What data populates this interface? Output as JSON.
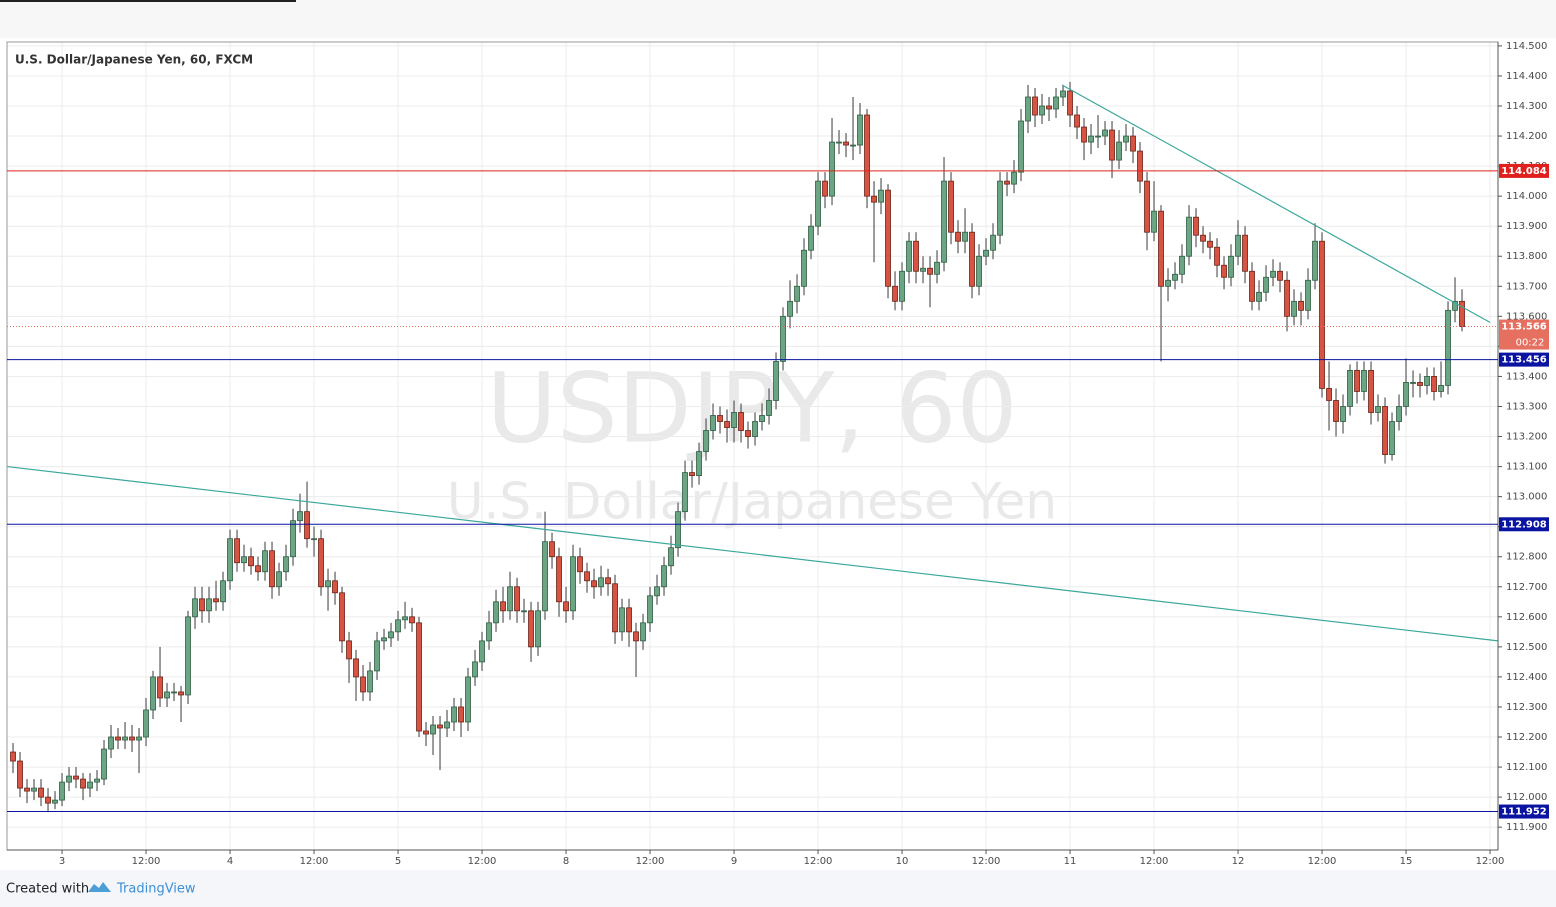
{
  "chart_data": {
    "type": "candlestick",
    "title": "U.S. Dollar/Japanese Yen, 60, FXCM",
    "watermark_symbol": "USDJPY, 60",
    "watermark_name": "U.S. Dollar/Japanese Yen",
    "up_color": "#6ba583",
    "down_color": "#d75442",
    "grid": true,
    "x": [
      -7,
      -6,
      -5,
      -4,
      -3,
      -2,
      -1,
      0,
      1,
      2,
      3,
      4,
      5,
      6,
      7,
      8,
      9,
      10,
      11,
      12,
      13,
      14,
      15,
      16,
      17,
      18,
      19,
      20,
      21,
      22,
      23,
      24,
      25,
      26,
      27,
      28,
      29,
      30,
      31,
      32,
      33,
      34,
      35,
      36,
      37,
      38,
      39,
      40,
      41,
      42,
      43,
      44,
      45,
      46,
      47,
      48,
      49,
      50,
      51,
      52,
      53,
      54,
      55,
      56,
      57,
      58,
      59,
      60,
      61,
      62,
      63,
      64,
      65,
      66,
      67,
      68,
      69,
      70,
      71,
      72,
      73,
      74,
      75,
      76,
      77,
      78,
      79,
      80,
      81,
      82,
      83,
      84,
      85,
      86,
      87,
      88,
      89,
      90,
      91,
      92,
      93,
      94,
      95,
      96,
      97,
      98,
      99,
      100,
      101,
      102,
      103,
      104,
      105,
      106,
      107,
      108,
      109,
      110,
      111,
      112,
      113,
      114,
      115,
      116,
      117,
      118,
      119,
      120,
      121,
      122,
      123,
      124,
      125,
      126,
      127,
      128,
      129,
      130,
      131,
      132,
      133,
      134,
      135,
      136,
      137,
      138,
      139,
      140,
      141,
      142,
      143,
      144,
      145,
      146,
      147,
      148,
      149,
      150,
      151,
      152,
      153,
      154,
      155,
      156,
      157,
      158,
      159,
      160,
      161,
      162,
      163,
      164,
      165,
      166,
      167,
      168,
      169,
      170,
      171,
      172,
      173,
      174,
      175,
      176,
      177,
      178,
      179,
      180,
      181,
      182,
      183,
      184,
      185,
      186,
      187,
      188,
      189,
      190,
      191,
      192,
      193,
      194,
      195,
      196,
      197,
      198,
      199,
      200
    ],
    "open": [
      112.15,
      112.12,
      112.03,
      112.02,
      112.03,
      112.0,
      111.98,
      111.99,
      112.05,
      112.07,
      112.06,
      112.03,
      112.05,
      112.06,
      112.16,
      112.2,
      112.19,
      112.2,
      112.19,
      112.2,
      112.29,
      112.4,
      112.33,
      112.35,
      112.35,
      112.34,
      112.6,
      112.66,
      112.62,
      112.66,
      112.65,
      112.72,
      112.86,
      112.78,
      112.8,
      112.77,
      112.75,
      112.82,
      112.7,
      112.75,
      112.8,
      112.92,
      112.95,
      112.86,
      112.86,
      112.7,
      112.72,
      112.68,
      112.52,
      112.46,
      112.4,
      112.35,
      112.42,
      112.52,
      112.53,
      112.55,
      112.59,
      112.6,
      112.58,
      112.22,
      112.21,
      112.24,
      112.23,
      112.25,
      112.3,
      112.25,
      112.4,
      112.45,
      112.52,
      112.58,
      112.65,
      112.62,
      112.7,
      112.62,
      112.62,
      112.5,
      112.62,
      112.85,
      112.8,
      112.65,
      112.62,
      112.8,
      112.75,
      112.72,
      112.7,
      112.73,
      112.71,
      112.55,
      112.63,
      112.55,
      112.52,
      112.58,
      112.67,
      112.7,
      112.77,
      112.83,
      112.95,
      113.08,
      113.07,
      113.15,
      113.22,
      113.27,
      113.25,
      113.23,
      113.28,
      113.22,
      113.2,
      113.25,
      113.27,
      113.32,
      113.45,
      113.6,
      113.65,
      113.7,
      113.82,
      113.9,
      114.05,
      114.0,
      114.18,
      114.18,
      114.17,
      114.17,
      114.27,
      114.0,
      113.98,
      114.02,
      113.7,
      113.65,
      113.75,
      113.85,
      113.75,
      113.76,
      113.74,
      113.78,
      114.05,
      113.88,
      113.85,
      113.88,
      113.7,
      113.8,
      113.82,
      113.87,
      114.05,
      114.04,
      114.08,
      114.25,
      114.33,
      114.27,
      114.3,
      114.29,
      114.33,
      114.35,
      114.27,
      114.23,
      114.18,
      114.2,
      114.2,
      114.22,
      114.12,
      114.18,
      114.2,
      114.15,
      114.05,
      113.88,
      113.95,
      113.7,
      113.72,
      113.74,
      113.8,
      113.93,
      113.87,
      113.85,
      113.83,
      113.77,
      113.73,
      113.8,
      113.87,
      113.75,
      113.65,
      113.68,
      113.73,
      113.75,
      113.72,
      113.6,
      113.65,
      113.62,
      113.72,
      113.85,
      113.36,
      113.32,
      113.25,
      113.3,
      113.42,
      113.35,
      113.42,
      113.28,
      113.3,
      113.14,
      113.25,
      113.3,
      113.38,
      113.38,
      113.37,
      113.4,
      113.35,
      113.37,
      113.62,
      113.65
    ],
    "high": [
      112.18,
      112.15,
      112.06,
      112.06,
      112.06,
      112.03,
      112.02,
      112.08,
      112.1,
      112.1,
      112.08,
      112.08,
      112.09,
      112.19,
      112.24,
      112.23,
      112.25,
      112.24,
      112.23,
      112.33,
      112.42,
      112.5,
      112.38,
      112.38,
      112.37,
      112.62,
      112.7,
      112.7,
      112.7,
      112.72,
      112.75,
      112.89,
      112.89,
      112.84,
      112.83,
      112.8,
      112.85,
      112.85,
      112.78,
      112.84,
      112.96,
      113.01,
      113.05,
      112.9,
      112.89,
      112.76,
      112.75,
      112.7,
      112.55,
      112.49,
      112.44,
      112.45,
      112.55,
      112.56,
      112.58,
      112.62,
      112.65,
      112.63,
      112.6,
      112.25,
      112.27,
      112.27,
      112.29,
      112.33,
      112.33,
      112.43,
      112.49,
      112.55,
      112.62,
      112.69,
      112.7,
      112.75,
      112.73,
      112.66,
      112.65,
      112.65,
      112.95,
      112.88,
      112.83,
      112.7,
      112.84,
      112.83,
      112.78,
      112.76,
      112.77,
      112.76,
      112.74,
      112.66,
      112.66,
      112.58,
      112.61,
      112.7,
      112.74,
      112.8,
      112.87,
      112.98,
      113.12,
      113.12,
      113.18,
      113.26,
      113.31,
      113.3,
      113.29,
      113.32,
      113.31,
      113.25,
      113.28,
      113.31,
      113.36,
      113.48,
      113.63,
      113.72,
      113.74,
      113.86,
      113.94,
      114.08,
      114.08,
      114.26,
      114.22,
      114.21,
      114.33,
      114.31,
      114.29,
      114.05,
      114.06,
      114.04,
      113.75,
      113.78,
      113.88,
      113.88,
      113.8,
      113.8,
      113.82,
      114.13,
      114.08,
      113.92,
      113.96,
      113.91,
      113.84,
      113.86,
      113.91,
      114.08,
      114.08,
      114.12,
      114.29,
      114.37,
      114.36,
      114.34,
      114.33,
      114.36,
      114.37,
      114.38,
      114.3,
      114.26,
      114.24,
      114.27,
      114.25,
      114.25,
      114.22,
      114.24,
      114.23,
      114.18,
      114.08,
      114.05,
      113.97,
      113.76,
      113.78,
      113.84,
      113.97,
      113.96,
      113.9,
      113.88,
      113.86,
      113.8,
      113.84,
      113.92,
      113.9,
      113.78,
      113.72,
      113.77,
      113.79,
      113.78,
      113.75,
      113.69,
      113.68,
      113.76,
      113.91,
      113.88,
      113.45,
      113.36,
      113.34,
      113.44,
      113.45,
      113.45,
      113.45,
      113.34,
      113.33,
      113.28,
      113.34,
      113.46,
      113.42,
      113.41,
      113.43,
      113.43,
      113.45,
      113.65,
      113.73,
      113.69
    ],
    "low": [
      112.08,
      112.0,
      111.98,
      111.99,
      111.97,
      111.95,
      111.96,
      111.97,
      112.02,
      112.03,
      111.99,
      112.0,
      112.02,
      112.04,
      112.13,
      112.16,
      112.16,
      112.15,
      112.08,
      112.17,
      112.26,
      112.3,
      112.3,
      112.32,
      112.25,
      112.31,
      112.56,
      112.58,
      112.58,
      112.62,
      112.62,
      112.69,
      112.75,
      112.75,
      112.74,
      112.72,
      112.72,
      112.66,
      112.67,
      112.72,
      112.77,
      112.88,
      112.83,
      112.8,
      112.67,
      112.62,
      112.64,
      112.48,
      112.38,
      112.32,
      112.32,
      112.32,
      112.39,
      112.49,
      112.5,
      112.52,
      112.56,
      112.55,
      112.2,
      112.17,
      112.14,
      112.09,
      112.2,
      112.22,
      112.2,
      112.22,
      112.37,
      112.42,
      112.49,
      112.55,
      112.58,
      112.59,
      112.58,
      112.58,
      112.45,
      112.47,
      112.59,
      112.76,
      112.6,
      112.58,
      112.59,
      112.71,
      112.68,
      112.66,
      112.67,
      112.67,
      112.51,
      112.52,
      112.5,
      112.4,
      112.49,
      112.55,
      112.64,
      112.67,
      112.74,
      112.8,
      112.92,
      113.03,
      113.04,
      113.12,
      113.19,
      113.21,
      113.18,
      113.18,
      113.18,
      113.16,
      113.17,
      113.22,
      113.24,
      113.29,
      113.42,
      113.56,
      113.61,
      113.67,
      113.79,
      113.87,
      113.96,
      113.97,
      114.14,
      114.13,
      114.12,
      114.14,
      113.96,
      113.78,
      113.94,
      113.66,
      113.62,
      113.62,
      113.71,
      113.71,
      113.71,
      113.63,
      113.71,
      113.75,
      113.84,
      113.81,
      113.81,
      113.66,
      113.67,
      113.77,
      113.79,
      113.84,
      114.0,
      114.01,
      114.05,
      114.21,
      114.23,
      114.24,
      114.25,
      114.26,
      114.3,
      114.23,
      114.19,
      114.12,
      114.14,
      114.16,
      114.17,
      114.06,
      114.09,
      114.15,
      114.11,
      114.01,
      113.82,
      113.85,
      113.45,
      113.65,
      113.69,
      113.71,
      113.77,
      113.83,
      113.81,
      113.79,
      113.73,
      113.69,
      113.7,
      113.77,
      113.71,
      113.62,
      113.62,
      113.65,
      113.7,
      113.68,
      113.55,
      113.57,
      113.57,
      113.59,
      113.69,
      113.33,
      113.22,
      113.2,
      113.21,
      113.27,
      113.31,
      113.32,
      113.24,
      113.25,
      113.11,
      113.12,
      113.22,
      113.27,
      113.33,
      113.33,
      113.34,
      113.32,
      113.33,
      113.34,
      113.58,
      113.55
    ],
    "close": [
      112.12,
      112.03,
      112.02,
      112.03,
      112.0,
      111.98,
      111.99,
      112.05,
      112.07,
      112.06,
      112.03,
      112.05,
      112.06,
      112.16,
      112.2,
      112.19,
      112.2,
      112.19,
      112.2,
      112.29,
      112.4,
      112.33,
      112.35,
      112.35,
      112.34,
      112.6,
      112.66,
      112.62,
      112.66,
      112.65,
      112.72,
      112.86,
      112.78,
      112.8,
      112.77,
      112.75,
      112.82,
      112.7,
      112.75,
      112.8,
      112.92,
      112.95,
      112.86,
      112.86,
      112.7,
      112.72,
      112.68,
      112.52,
      112.46,
      112.4,
      112.35,
      112.42,
      112.52,
      112.53,
      112.55,
      112.59,
      112.6,
      112.58,
      112.22,
      112.21,
      112.24,
      112.23,
      112.25,
      112.3,
      112.25,
      112.4,
      112.45,
      112.52,
      112.58,
      112.65,
      112.62,
      112.7,
      112.62,
      112.62,
      112.5,
      112.62,
      112.85,
      112.8,
      112.65,
      112.62,
      112.8,
      112.75,
      112.72,
      112.7,
      112.73,
      112.71,
      112.55,
      112.63,
      112.55,
      112.52,
      112.58,
      112.67,
      112.7,
      112.77,
      112.83,
      112.95,
      113.08,
      113.07,
      113.15,
      113.22,
      113.27,
      113.25,
      113.23,
      113.28,
      113.22,
      113.2,
      113.25,
      113.27,
      113.32,
      113.45,
      113.6,
      113.65,
      113.7,
      113.82,
      113.9,
      114.05,
      114.0,
      114.18,
      114.18,
      114.17,
      114.17,
      114.27,
      114.0,
      113.98,
      114.02,
      113.7,
      113.65,
      113.75,
      113.85,
      113.75,
      113.76,
      113.74,
      113.78,
      114.05,
      113.88,
      113.85,
      113.88,
      113.7,
      113.8,
      113.82,
      113.87,
      114.05,
      114.04,
      114.08,
      114.25,
      114.33,
      114.27,
      114.3,
      114.29,
      114.33,
      114.35,
      114.27,
      114.23,
      114.18,
      114.2,
      114.2,
      114.22,
      114.12,
      114.18,
      114.2,
      114.15,
      114.05,
      113.88,
      113.95,
      113.7,
      113.72,
      113.74,
      113.8,
      113.93,
      113.87,
      113.85,
      113.83,
      113.77,
      113.73,
      113.8,
      113.87,
      113.75,
      113.65,
      113.68,
      113.73,
      113.75,
      113.72,
      113.6,
      113.65,
      113.62,
      113.72,
      113.85,
      113.36,
      113.32,
      113.25,
      113.3,
      113.42,
      113.35,
      113.42,
      113.28,
      113.3,
      113.14,
      113.25,
      113.3,
      113.38,
      113.38,
      113.37,
      113.4,
      113.35,
      113.37,
      113.62,
      113.65,
      113.566
    ],
    "xlim": [
      -7.86,
      205.14
    ],
    "xticks": [
      {
        "value": 0,
        "label": "3"
      },
      {
        "value": 12,
        "label": "12:00"
      },
      {
        "value": 24,
        "label": "4"
      },
      {
        "value": 36,
        "label": "12:00"
      },
      {
        "value": 48,
        "label": "5"
      },
      {
        "value": 60,
        "label": "12:00"
      },
      {
        "value": 72,
        "label": "8"
      },
      {
        "value": 84,
        "label": "12:00"
      },
      {
        "value": 96,
        "label": "9"
      },
      {
        "value": 108,
        "label": "12:00"
      },
      {
        "value": 120,
        "label": "10"
      },
      {
        "value": 132,
        "label": "12:00"
      },
      {
        "value": 144,
        "label": "11"
      },
      {
        "value": 156,
        "label": "12:00"
      },
      {
        "value": 168,
        "label": "12"
      },
      {
        "value": 180,
        "label": "12:00"
      },
      {
        "value": 192,
        "label": "15"
      },
      {
        "value": 204,
        "label": "12:00"
      }
    ],
    "ylim": [
      111.824,
      114.513
    ],
    "yticks": [
      {
        "value": 111.9,
        "label": "111.900"
      },
      {
        "value": 112.0,
        "label": "112.000"
      },
      {
        "value": 112.1,
        "label": "112.100"
      },
      {
        "value": 112.2,
        "label": "112.200"
      },
      {
        "value": 112.3,
        "label": "112.300"
      },
      {
        "value": 112.4,
        "label": "112.400"
      },
      {
        "value": 112.5,
        "label": "112.500"
      },
      {
        "value": 112.6,
        "label": "112.600"
      },
      {
        "value": 112.7,
        "label": "112.700"
      },
      {
        "value": 112.8,
        "label": "112.800"
      },
      {
        "value": 112.9,
        "label": "112.900"
      },
      {
        "value": 113.0,
        "label": "113.000"
      },
      {
        "value": 113.1,
        "label": "113.100"
      },
      {
        "value": 113.2,
        "label": "113.200"
      },
      {
        "value": 113.3,
        "label": "113.300"
      },
      {
        "value": 113.4,
        "label": "113.400"
      },
      {
        "value": 113.5,
        "label": "113.500"
      },
      {
        "value": 113.6,
        "label": "113.600"
      },
      {
        "value": 113.7,
        "label": "113.700"
      },
      {
        "value": 113.8,
        "label": "113.800"
      },
      {
        "value": 113.9,
        "label": "113.900"
      },
      {
        "value": 114.0,
        "label": "114.000"
      },
      {
        "value": 114.1,
        "label": "114.100"
      },
      {
        "value": 114.2,
        "label": "114.200"
      },
      {
        "value": 114.3,
        "label": "114.300"
      },
      {
        "value": 114.4,
        "label": "114.400"
      },
      {
        "value": 114.5,
        "label": "114.500"
      }
    ],
    "hlines": [
      {
        "value": 114.084,
        "color": "#e0201c"
      },
      {
        "value": 113.456,
        "color": "#0a14a0"
      },
      {
        "value": 112.908,
        "color": "#0a14a0"
      },
      {
        "value": 111.952,
        "color": "#0a14a0"
      }
    ],
    "last_price": {
      "value": 113.566,
      "countdown": "00:22",
      "color": "#e57060"
    },
    "trendlines": [
      {
        "color": "#3aa89a",
        "x": [
          142.86,
          204.0
        ],
        "y": [
          114.37,
          113.58
        ]
      },
      {
        "color": "#3aa89a",
        "x": [
          -7.86,
          205.14
        ],
        "y": [
          113.1,
          112.52
        ]
      }
    ]
  },
  "footer": {
    "created_with": "Created with",
    "brand": "TradingView"
  }
}
